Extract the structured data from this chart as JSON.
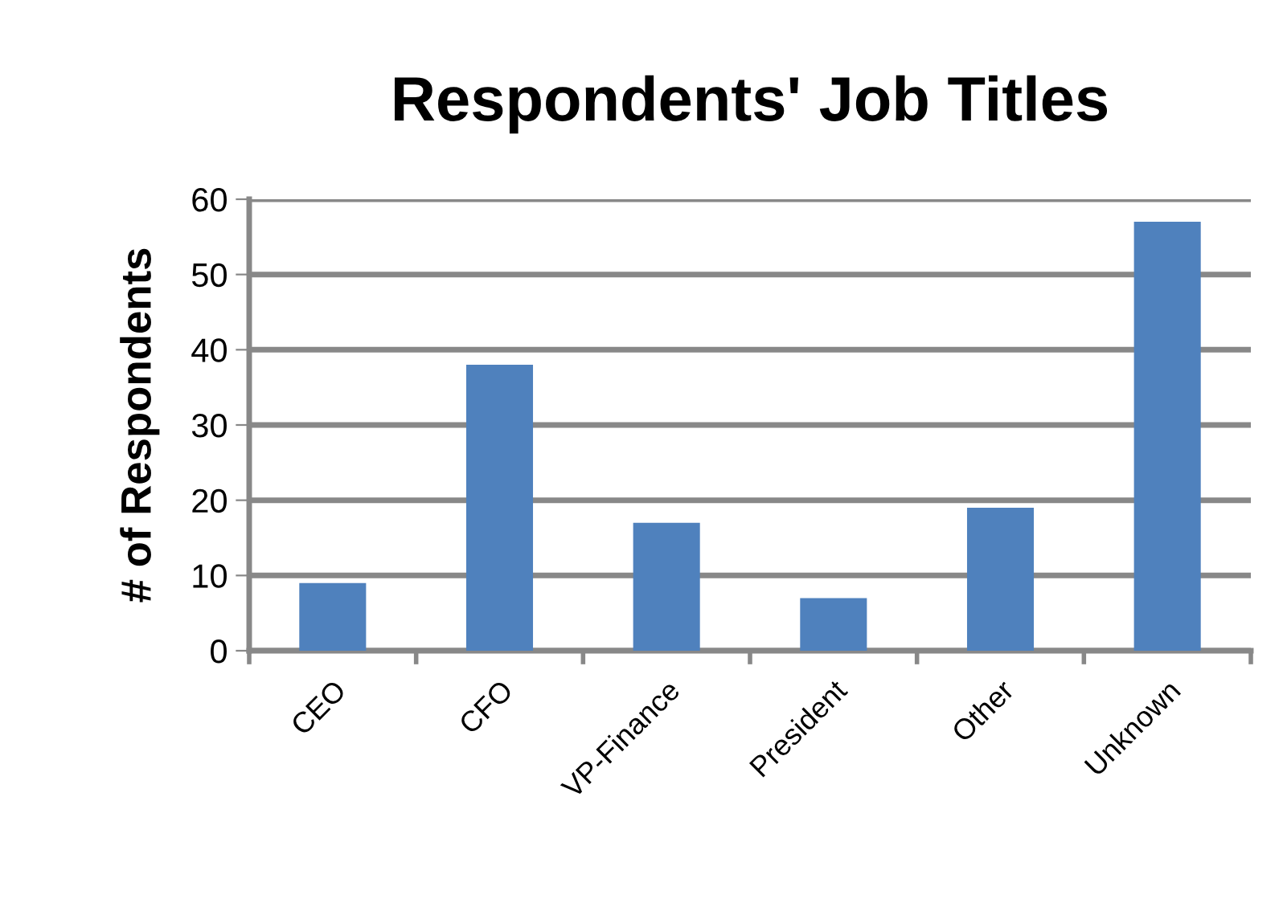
{
  "chart_data": {
    "type": "bar",
    "title": "Respondents' Job Titles",
    "ylabel": "# of Respondents",
    "categories": [
      "CEO",
      "CFO",
      "VP-Finance",
      "President",
      "Other",
      "Unknown"
    ],
    "values": [
      9,
      38,
      17,
      7,
      19,
      57
    ],
    "color": "#4f81bd",
    "ylim": [
      0,
      60
    ],
    "yticks": [
      0,
      10,
      20,
      30,
      40,
      50,
      60
    ],
    "grid": "y"
  }
}
